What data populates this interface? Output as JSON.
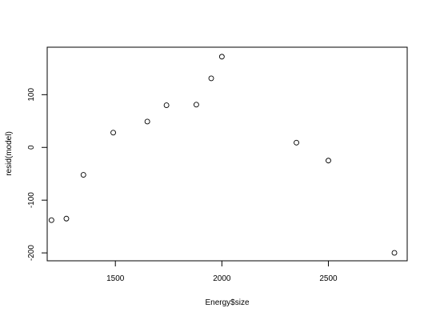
{
  "chart_data": {
    "type": "scatter",
    "title": "",
    "xlabel": "Energy$size",
    "ylabel": "resid(model)",
    "xlim": [
      1180,
      2870
    ],
    "ylim": [
      -215,
      190
    ],
    "xticks": [
      1500,
      2000,
      2500
    ],
    "yticks": [
      -200,
      -100,
      0,
      100
    ],
    "grid": false,
    "legend": "none",
    "marker": "open-circle",
    "points": [
      {
        "x": 1200,
        "y": -138
      },
      {
        "x": 1270,
        "y": -135
      },
      {
        "x": 1350,
        "y": -52
      },
      {
        "x": 1490,
        "y": 28
      },
      {
        "x": 1650,
        "y": 49
      },
      {
        "x": 1740,
        "y": 80
      },
      {
        "x": 1880,
        "y": 81
      },
      {
        "x": 1950,
        "y": 131
      },
      {
        "x": 2000,
        "y": 172
      },
      {
        "x": 2350,
        "y": 9
      },
      {
        "x": 2500,
        "y": -25
      },
      {
        "x": 2810,
        "y": -200
      }
    ]
  }
}
